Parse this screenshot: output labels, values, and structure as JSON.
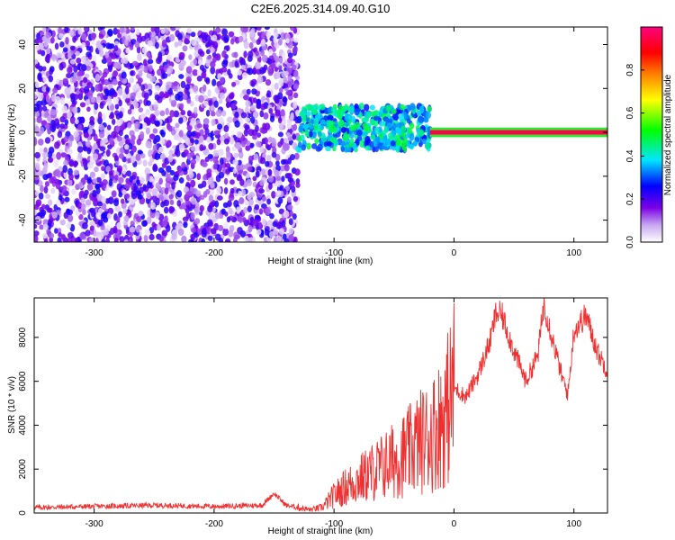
{
  "figure_title": "C2E6.2025.314.09.40.G10",
  "chart_data": [
    {
      "type": "heatmap",
      "xlabel": "Height of straight line (km)",
      "ylabel": "Frequency (Hz)",
      "xlim": [
        -350,
        128
      ],
      "ylim": [
        -50,
        48
      ],
      "xticks": [
        -300,
        -200,
        -100,
        0,
        100
      ],
      "yticks": [
        -40,
        -20,
        0,
        20,
        40
      ],
      "colorbar": {
        "label": "Normalized spectral amplitude",
        "range": [
          0,
          1
        ],
        "ticks": [
          0.0,
          0.2,
          0.4,
          0.6,
          0.8
        ],
        "colormap": [
          "#ffffff",
          "#7a00e6",
          "#0000ff",
          "#00e5ff",
          "#00ff00",
          "#ffff00",
          "#ff8000",
          "#ff0000",
          "#ff0080"
        ]
      },
      "regions": [
        {
          "x_range": [
            -350,
            -130
          ],
          "freq_range": [
            -50,
            48
          ],
          "amplitude_range": [
            0.02,
            0.25
          ],
          "pattern": "broadband scattered noise"
        },
        {
          "x_range": [
            -130,
            -20
          ],
          "freq_range": [
            -8,
            12
          ],
          "amplitude_range": [
            0.25,
            0.5
          ],
          "pattern": "clustered band near 0 Hz"
        },
        {
          "x_range": [
            -20,
            128
          ],
          "freq_range": [
            -1,
            1
          ],
          "amplitude_range": [
            0.8,
            0.95
          ],
          "pattern": "narrow line at 0 Hz"
        }
      ]
    },
    {
      "type": "line",
      "xlabel": "Height of straight line (km)",
      "ylabel": "SNR (10 * v/v)",
      "xlim": [
        -350,
        128
      ],
      "ylim": [
        0,
        9800
      ],
      "xticks": [
        -300,
        -200,
        -100,
        0,
        100
      ],
      "yticks": [
        0,
        2000,
        4000,
        6000,
        8000
      ],
      "color": "#ee3030",
      "series": [
        {
          "x": [
            -350,
            -300,
            -250,
            -200,
            -160,
            -150,
            -140,
            -120,
            -110,
            -100,
            -90,
            -80,
            -70,
            -60,
            -50,
            -40,
            -30,
            -20,
            -10,
            -5,
            0,
            10,
            20,
            30,
            35,
            40,
            50,
            60,
            70,
            75,
            80,
            90,
            95,
            100,
            110,
            120,
            128
          ],
          "y": [
            250,
            300,
            350,
            300,
            350,
            900,
            350,
            150,
            250,
            800,
            1200,
            1500,
            1800,
            2100,
            2400,
            2700,
            3200,
            3500,
            4200,
            4800,
            5700,
            5300,
            6300,
            7800,
            9100,
            9000,
            7400,
            6000,
            7200,
            9600,
            8400,
            6200,
            5400,
            8300,
            9000,
            7300,
            6500
          ]
        }
      ]
    }
  ]
}
